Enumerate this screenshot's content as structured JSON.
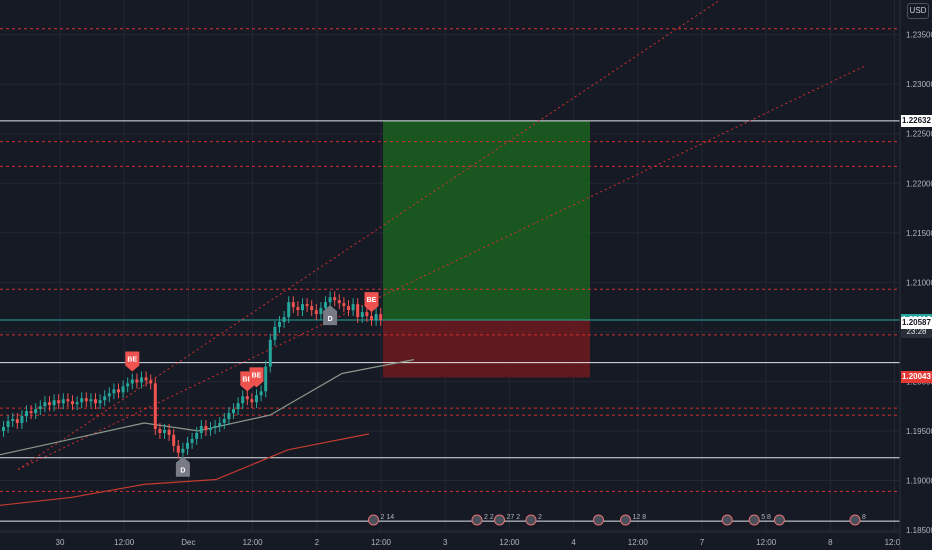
{
  "axis": {
    "currency": "USD"
  },
  "chart_data": {
    "type": "candlestick",
    "instrument_currency": "USD",
    "ylim": [
      1.1848,
      1.2385
    ],
    "x_ticks": [
      "30",
      "12:00",
      "Dec",
      "12:00",
      "2",
      "12:00",
      "3",
      "12:00",
      "4",
      "12:00",
      "7",
      "12:00",
      "8",
      "12:00"
    ],
    "y_ticks": [
      "1.23500",
      "1.23000",
      "1.22500",
      "1.22000",
      "1.21500",
      "1.21000",
      "1.20500",
      "1.20000",
      "1.19500",
      "1.19000",
      "1.18500"
    ],
    "price_labels": [
      {
        "value": "1.22632",
        "style": "white"
      },
      {
        "value": "1.20616",
        "style": "green"
      },
      {
        "value": "23:28",
        "style": "dark"
      },
      {
        "value": "1.20587",
        "style": "white"
      },
      {
        "value": "1.20043",
        "style": "red"
      }
    ],
    "horizontal_levels": [
      {
        "price": 1.2356,
        "style": "dotted-red"
      },
      {
        "price": 1.2263,
        "style": "solid-white"
      },
      {
        "price": 1.2242,
        "style": "dotted-red"
      },
      {
        "price": 1.2217,
        "style": "dotted-red"
      },
      {
        "price": 1.2093,
        "style": "dotted-red"
      },
      {
        "price": 1.2062,
        "style": "solid-green"
      },
      {
        "price": 1.2047,
        "style": "dotted-red"
      },
      {
        "price": 1.2019,
        "style": "solid-white"
      },
      {
        "price": 1.1973,
        "style": "dotted-red"
      },
      {
        "price": 1.1966,
        "style": "dotted-red"
      },
      {
        "price": 1.1923,
        "style": "solid-white"
      },
      {
        "price": 1.1889,
        "style": "dotted-red"
      },
      {
        "price": 1.1859,
        "style": "solid-white"
      }
    ],
    "position": {
      "type": "long",
      "entry": 1.2062,
      "target": 1.2263,
      "stop": 1.2004
    },
    "trendlines": [
      {
        "from": [
          0.02,
          1.1911
        ],
        "to": [
          0.8,
          1.2385
        ],
        "style": "dotted-red"
      },
      {
        "from": [
          0.02,
          1.1911
        ],
        "to": [
          0.96,
          1.2318
        ],
        "style": "dotted-red"
      }
    ],
    "moving_averages": [
      {
        "color": "#8a9a8c",
        "points": [
          [
            0.0,
            1.1926
          ],
          [
            0.08,
            1.1942
          ],
          [
            0.16,
            1.1958
          ],
          [
            0.22,
            1.195
          ],
          [
            0.3,
            1.1966
          ],
          [
            0.38,
            1.2008
          ],
          [
            0.46,
            1.2022
          ]
        ]
      },
      {
        "color": "#c23b2e",
        "points": [
          [
            0.0,
            1.1875
          ],
          [
            0.08,
            1.1883
          ],
          [
            0.16,
            1.1896
          ],
          [
            0.24,
            1.1901
          ],
          [
            0.32,
            1.1931
          ],
          [
            0.41,
            1.1947
          ]
        ]
      }
    ],
    "candles_close": [
      1.1954,
      1.196,
      1.1962,
      1.1958,
      1.1965,
      1.197,
      1.1968,
      1.1972,
      1.1975,
      1.1979,
      1.1976,
      1.1981,
      1.1978,
      1.1982,
      1.198,
      1.1977,
      1.1979,
      1.1983,
      1.198,
      1.1982,
      1.1978,
      1.1981,
      1.1985,
      1.1988,
      1.1992,
      1.1989,
      1.1995,
      1.1998,
      1.2002,
      1.1999,
      1.2004,
      1.2001,
      1.1998,
      1.1952,
      1.1948,
      1.1951,
      1.1946,
      1.1935,
      1.1928,
      1.1932,
      1.1938,
      1.1942,
      1.1948,
      1.1955,
      1.1951,
      1.1953,
      1.1955,
      1.1958,
      1.1962,
      1.1968,
      1.1972,
      1.1978,
      1.1985,
      1.1982,
      1.1979,
      1.1986,
      1.199,
      1.2015,
      1.2042,
      1.2055,
      1.206,
      1.2065,
      1.208,
      1.2075,
      1.2072,
      1.2078,
      1.2076,
      1.2072,
      1.2068,
      1.2074,
      1.208,
      1.2085,
      1.2082,
      1.2079,
      1.2076,
      1.2072,
      1.2078,
      1.2065,
      1.207,
      1.2066,
      1.2062,
      1.2068,
      1.2062
    ],
    "signals": [
      {
        "label": "BE",
        "kind": "sell",
        "index": 28
      },
      {
        "label": "BE",
        "kind": "sell",
        "index": 53
      },
      {
        "label": "BE",
        "kind": "sell",
        "index": 55
      },
      {
        "label": "BE",
        "kind": "sell",
        "index": 80
      },
      {
        "label": "D",
        "kind": "buy",
        "index": 39
      },
      {
        "label": "D",
        "kind": "buy",
        "index": 71
      }
    ],
    "event_markers": [
      {
        "x": 0.415,
        "text": "2 14"
      },
      {
        "x": 0.53,
        "text": "2 2"
      },
      {
        "x": 0.555,
        "text": "27 2"
      },
      {
        "x": 0.59,
        "text": "2"
      },
      {
        "x": 0.665,
        "text": ""
      },
      {
        "x": 0.695,
        "text": "12 8"
      },
      {
        "x": 0.808,
        "text": ""
      },
      {
        "x": 0.838,
        "text": "5 8"
      },
      {
        "x": 0.866,
        "text": ""
      },
      {
        "x": 0.95,
        "text": "8"
      }
    ]
  }
}
